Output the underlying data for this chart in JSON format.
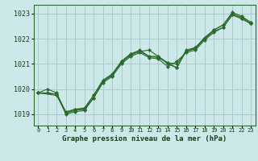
{
  "title": "Graphe pression niveau de la mer (hPa)",
  "bg_color": "#cce8e8",
  "grid_color": "#aacccc",
  "line_color": "#2d6a2d",
  "xlim": [
    -0.5,
    23.5
  ],
  "ylim": [
    1018.55,
    1023.35
  ],
  "yticks": [
    1019,
    1020,
    1021,
    1022,
    1023
  ],
  "xticks": [
    0,
    1,
    2,
    3,
    4,
    5,
    6,
    7,
    8,
    9,
    10,
    11,
    12,
    13,
    14,
    15,
    16,
    17,
    18,
    19,
    20,
    21,
    22,
    23
  ],
  "series": [
    {
      "x": [
        0,
        1,
        2,
        3,
        4,
        5,
        6,
        7,
        8,
        9,
        10,
        11,
        12,
        13,
        14,
        15,
        16,
        17,
        18,
        19,
        20,
        21,
        22,
        23
      ],
      "y": [
        1019.85,
        1020.0,
        1019.85,
        1019.05,
        1019.15,
        1019.2,
        1019.65,
        1020.3,
        1020.55,
        1021.05,
        1021.35,
        1021.5,
        1021.3,
        1021.25,
        1021.05,
        1021.0,
        1021.5,
        1021.6,
        1022.0,
        1022.3,
        1022.45,
        1022.95,
        1022.8,
        1022.6
      ]
    },
    {
      "x": [
        0,
        2,
        3,
        4,
        5,
        6,
        7,
        8,
        9,
        10,
        11,
        12,
        13,
        14,
        15,
        16,
        17,
        18,
        19,
        20,
        21,
        22,
        23
      ],
      "y": [
        1019.85,
        1019.8,
        1019.0,
        1019.1,
        1019.15,
        1019.65,
        1020.25,
        1020.5,
        1021.0,
        1021.3,
        1021.45,
        1021.25,
        1021.2,
        1020.9,
        1021.1,
        1021.45,
        1021.55,
        1021.95,
        1022.25,
        1022.45,
        1022.95,
        1022.8,
        1022.6
      ]
    },
    {
      "x": [
        0,
        1,
        2,
        3,
        4,
        5,
        6,
        7,
        8,
        9,
        10,
        11,
        12,
        13,
        14,
        15,
        16,
        17,
        18,
        19,
        20,
        21,
        22,
        23
      ],
      "y": [
        1019.85,
        1019.85,
        1019.8,
        1019.1,
        1019.2,
        1019.25,
        1019.75,
        1020.35,
        1020.6,
        1021.1,
        1021.4,
        1021.55,
        1021.3,
        1021.3,
        1021.05,
        1020.85,
        1021.55,
        1021.65,
        1022.05,
        1022.35,
        1022.55,
        1023.05,
        1022.9,
        1022.65
      ]
    },
    {
      "x": [
        0,
        2,
        3,
        4,
        5,
        6,
        7,
        8,
        9,
        10,
        11,
        12,
        13,
        14,
        15,
        16,
        17,
        18,
        19,
        20,
        21,
        22,
        23
      ],
      "y": [
        1019.85,
        1019.75,
        1019.05,
        1019.2,
        1019.2,
        1019.75,
        1020.35,
        1020.55,
        1021.1,
        1021.4,
        1021.5,
        1021.55,
        1021.3,
        1021.0,
        1020.85,
        1021.5,
        1021.65,
        1022.0,
        1022.35,
        1022.55,
        1023.0,
        1022.85,
        1022.65
      ]
    }
  ]
}
